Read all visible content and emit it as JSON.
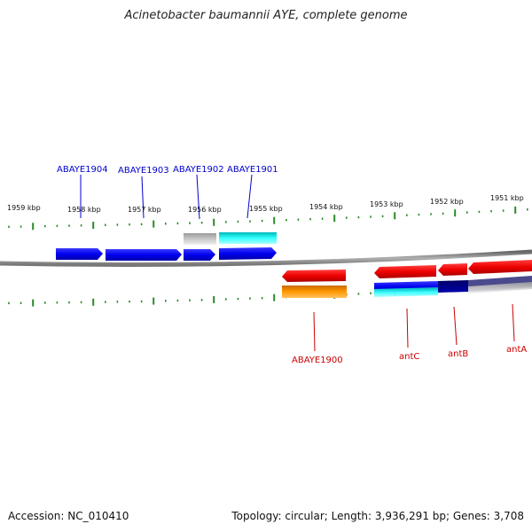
{
  "title": "Acinetobacter baumannii AYE, complete genome",
  "ticks_upper": [
    "1959 kbp",
    "1958 kbp",
    "1957 kbp",
    "1956 kbp",
    "1955 kbp",
    "1954 kbp",
    "1953 kbp",
    "1952 kbp",
    "1951 kbp"
  ],
  "genes_top": [
    "ABAYE1904",
    "ABAYE1903",
    "ABAYE1902",
    "ABAYE1901"
  ],
  "genes_bottom": [
    "ABAYE1900",
    "antC",
    "antB",
    "antA"
  ],
  "colors": {
    "top_label": "#0000cc",
    "bottom_label": "#cc0000",
    "tick": "#2a8a2a",
    "backbone": "#808080"
  },
  "footer": {
    "accession": "Accession: NC_010410",
    "stats": "Topology: circular; Length: 3,936,291 bp; Genes: 3,708"
  }
}
